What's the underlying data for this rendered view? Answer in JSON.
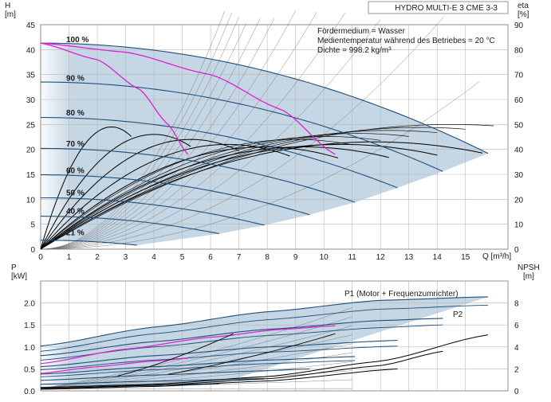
{
  "chart_data": [
    {
      "type": "line",
      "title": "HYDRO MULTI-E 3 CME 3-3",
      "xlabel": "Q [m³/h]",
      "ylabel_top": "H",
      "ylabel_unit": "[m]",
      "y2label_top": "eta",
      "y2label_unit": "[%]",
      "xlim": [
        0,
        16.5
      ],
      "ylim": [
        0,
        45
      ],
      "y2lim": [
        0,
        90
      ],
      "grid": true,
      "x_ticks": [
        "0",
        "1",
        "2",
        "3",
        "4",
        "5",
        "6",
        "7",
        "8",
        "9",
        "10",
        "11",
        "12",
        "13",
        "14",
        "15"
      ],
      "y_ticks": [
        "0",
        "5",
        "10",
        "15",
        "20",
        "25",
        "30",
        "35",
        "40",
        "45"
      ],
      "y2_ticks": [
        "0",
        "10",
        "20",
        "30",
        "40",
        "50",
        "60",
        "70",
        "80",
        "90"
      ],
      "notes": [
        "Fördermedium = Wasser",
        "Medientemperatur während des Betriebes = 20 °C",
        "Dichte = 998.2 kg/m³"
      ],
      "speed_labels": [
        {
          "text": "100 %",
          "q": 0.9,
          "h": 41.0
        },
        {
          "text": "90 %",
          "q": 0.9,
          "h": 33.3
        },
        {
          "text": "80 %",
          "q": 0.9,
          "h": 26.3
        },
        {
          "text": "70 %",
          "q": 0.9,
          "h": 20.1
        },
        {
          "text": "60 %",
          "q": 0.9,
          "h": 14.8
        },
        {
          "text": "50 %",
          "q": 0.9,
          "h": 10.3
        },
        {
          "text": "40 %",
          "q": 0.9,
          "h": 6.6
        },
        {
          "text": "21 %",
          "q": 0.9,
          "h": 2.3
        }
      ],
      "head_curves": [
        {
          "speed": 1.0,
          "h0": 41.3,
          "qmax": 15.8,
          "hend": 19.2
        },
        {
          "speed": 0.9,
          "h0": 33.5,
          "qmax": 14.2,
          "hend": 15.6
        },
        {
          "speed": 0.8,
          "h0": 26.4,
          "qmax": 12.6,
          "hend": 12.3
        },
        {
          "speed": 0.7,
          "h0": 20.2,
          "qmax": 11.1,
          "hend": 9.4
        },
        {
          "speed": 0.6,
          "h0": 14.9,
          "qmax": 9.5,
          "hend": 6.9
        },
        {
          "speed": 0.5,
          "h0": 10.3,
          "qmax": 7.9,
          "hend": 4.8
        },
        {
          "speed": 0.4,
          "h0": 6.6,
          "qmax": 6.3,
          "hend": 3.1
        },
        {
          "speed": 0.21,
          "h0": 1.8,
          "qmax": 3.4,
          "hend": 0.8
        }
      ],
      "eta_curves": [
        {
          "qpk": 2.5,
          "etapk": 49,
          "qend": 3.2
        },
        {
          "qpk": 4.0,
          "etapk": 46,
          "qend": 5.3
        },
        {
          "qpk": 5.3,
          "etapk": 44,
          "qend": 7.0
        },
        {
          "qpk": 6.6,
          "etapk": 42,
          "qend": 8.8
        },
        {
          "qpk": 7.9,
          "etapk": 41,
          "qend": 10.5
        },
        {
          "qpk": 9.3,
          "etapk": 41,
          "qend": 12.3
        },
        {
          "qpk": 10.6,
          "etapk": 42,
          "qend": 14.0
        },
        {
          "qpk": 11.8,
          "etapk": 43,
          "qend": 15.6
        }
      ],
      "magenta_curves": [
        {
          "q": [
            0,
            2.0,
            3.5,
            4.5,
            5.2
          ],
          "h": [
            41.3,
            38.0,
            32.0,
            25.0,
            19.0
          ]
        },
        {
          "q": [
            0,
            3.0,
            6.0,
            8.5,
            10.4
          ],
          "h": [
            41.3,
            39.5,
            35.0,
            28.0,
            19.0
          ]
        }
      ]
    },
    {
      "type": "line",
      "xlabel": "",
      "ylabel_top": "P",
      "ylabel_unit": "[kW]",
      "y2label_top": "NPSH",
      "y2label_unit": "[m]",
      "xlim": [
        0,
        16.5
      ],
      "ylim": [
        0,
        2.5
      ],
      "y2lim": [
        0,
        10
      ],
      "grid": true,
      "y_ticks": [
        "0.0",
        "0.5",
        "1.0",
        "1.5",
        "2.0"
      ],
      "y2_ticks": [
        "0",
        "2",
        "4",
        "6",
        "8"
      ],
      "legend": [
        "P1 (Motor + Frequenzumrichter)",
        "P2"
      ],
      "p1_curves": [
        {
          "q": [
            0,
            4,
            8,
            12,
            15.8
          ],
          "p": [
            1.02,
            1.45,
            1.8,
            2.06,
            2.14
          ]
        },
        {
          "q": [
            0,
            4,
            8,
            12,
            14.2
          ],
          "p": [
            0.8,
            1.12,
            1.4,
            1.6,
            1.65
          ]
        },
        {
          "q": [
            0,
            4,
            8,
            12.6
          ],
          "p": [
            0.55,
            0.8,
            1.0,
            1.15
          ]
        },
        {
          "q": [
            0,
            4,
            8,
            11.1
          ],
          "p": [
            0.38,
            0.55,
            0.7,
            0.78
          ]
        },
        {
          "q": [
            0,
            4,
            8,
            9.5
          ],
          "p": [
            0.24,
            0.36,
            0.46,
            0.5
          ]
        },
        {
          "q": [
            0,
            4,
            7.9
          ],
          "p": [
            0.15,
            0.22,
            0.28
          ]
        },
        {
          "q": [
            0,
            3,
            6.3
          ],
          "p": [
            0.08,
            0.12,
            0.16
          ]
        }
      ],
      "p2_curves": [
        {
          "q": [
            0,
            4,
            8,
            12,
            15.8
          ],
          "p": [
            0.9,
            1.3,
            1.62,
            1.86,
            1.95
          ]
        },
        {
          "q": [
            0,
            4,
            8,
            12,
            14.2
          ],
          "p": [
            0.7,
            1.0,
            1.26,
            1.44,
            1.5
          ]
        },
        {
          "q": [
            0,
            4,
            8,
            12.6
          ],
          "p": [
            0.48,
            0.7,
            0.88,
            1.02
          ]
        },
        {
          "q": [
            0,
            4,
            8,
            11.1
          ],
          "p": [
            0.32,
            0.48,
            0.62,
            0.69
          ]
        }
      ],
      "npsh_curves": [
        {
          "q": [
            0,
            4,
            8,
            12,
            15.8
          ],
          "npsh": [
            0.3,
            0.6,
            1.3,
            2.7,
            5.1
          ]
        },
        {
          "q": [
            0,
            4,
            8,
            12,
            14.2
          ],
          "npsh": [
            0.2,
            0.5,
            1.1,
            2.3,
            3.6
          ]
        },
        {
          "q": [
            0,
            4,
            8,
            12.6
          ],
          "npsh": [
            0.15,
            0.4,
            0.9,
            2.0
          ]
        }
      ],
      "magenta_p": [
        {
          "q": [
            0,
            3,
            6,
            8.5,
            10.4
          ],
          "p": [
            0.62,
            0.95,
            1.22,
            1.4,
            1.48
          ]
        },
        {
          "q": [
            0,
            2,
            4,
            5.2
          ],
          "p": [
            0.4,
            0.55,
            0.68,
            0.74
          ]
        }
      ]
    }
  ]
}
